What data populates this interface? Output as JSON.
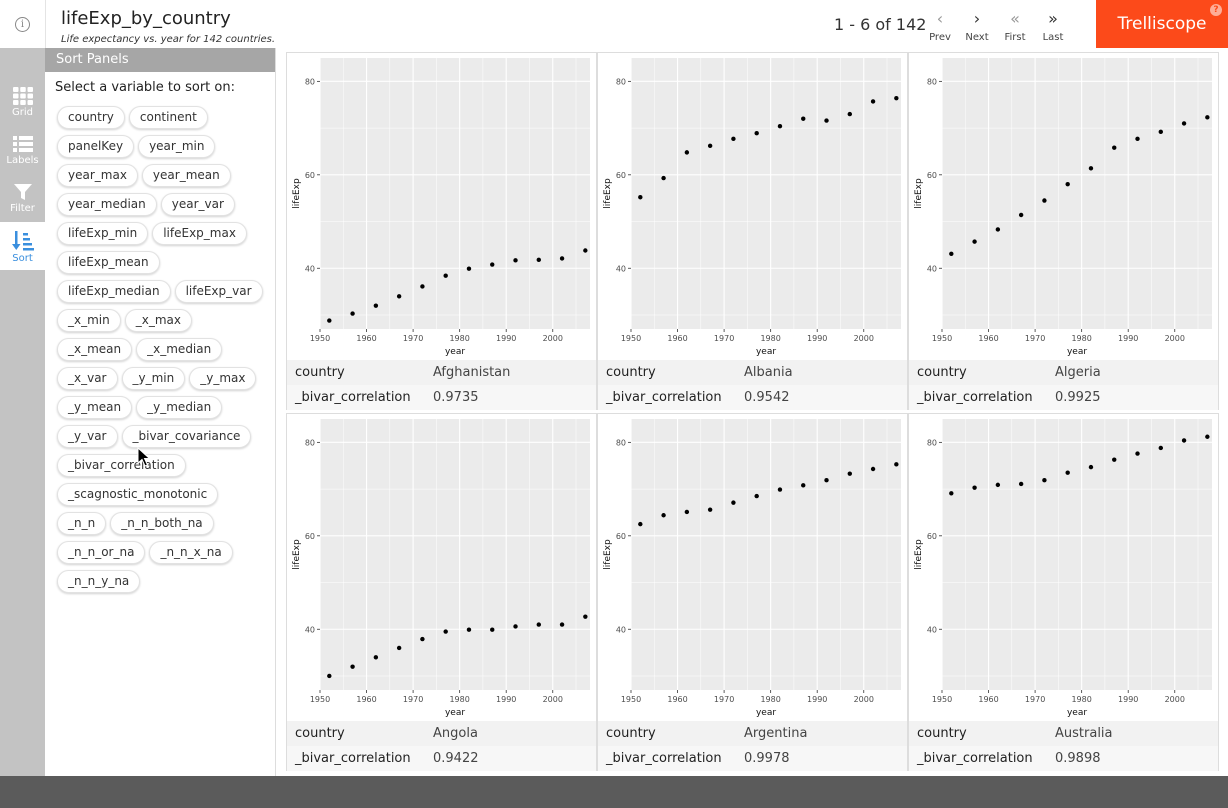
{
  "header": {
    "title": "lifeExp_by_country",
    "subtitle": "Life expectancy vs. year for 142 countries.",
    "page_info": "1 - 6 of 142",
    "nav": {
      "prev": "Prev",
      "next": "Next",
      "first": "First",
      "last": "Last"
    },
    "brand": "Trelliscope",
    "help": "?",
    "info": "i"
  },
  "toolbar": {
    "grid": "Grid",
    "labels": "Labels",
    "filter": "Filter",
    "sort": "Sort"
  },
  "sort_panel": {
    "title": "Sort Panels",
    "instruction": "Select a variable to sort on:",
    "variables": [
      "country",
      "continent",
      "panelKey",
      "year_min",
      "year_max",
      "year_mean",
      "year_median",
      "year_var",
      "lifeExp_min",
      "lifeExp_max",
      "lifeExp_mean",
      "lifeExp_median",
      "lifeExp_var",
      "_x_min",
      "_x_max",
      "_x_mean",
      "_x_median",
      "_x_var",
      "_y_min",
      "_y_max",
      "_y_mean",
      "_y_median",
      "_y_var",
      "_bivar_covariance",
      "_bivar_correlation",
      "_scagnostic_monotonic",
      "_n_n",
      "_n_n_both_na",
      "_n_n_or_na",
      "_n_n_x_na",
      "_n_n_y_na"
    ]
  },
  "colors": {
    "brand": "#fc4a1a",
    "active_tool": "#3a8fde",
    "plot_bg": "#ebebeb"
  },
  "chart_data": [
    {
      "type": "scatter",
      "xlabel": "year",
      "ylabel": "lifeExp",
      "xticks": [
        1950,
        1960,
        1970,
        1980,
        1990,
        2000
      ],
      "yticks": [
        40,
        60,
        80
      ],
      "xlim": [
        1950,
        2008
      ],
      "ylim": [
        27,
        85
      ],
      "x": [
        1952,
        1957,
        1962,
        1967,
        1972,
        1977,
        1982,
        1987,
        1992,
        1997,
        2002,
        2007
      ],
      "y": [
        28.8,
        30.3,
        32.0,
        34.0,
        36.1,
        38.4,
        39.9,
        40.8,
        41.7,
        41.8,
        42.1,
        43.8
      ],
      "labels": {
        "country": "Afghanistan",
        "_bivar_correlation": "0.9735"
      }
    },
    {
      "type": "scatter",
      "xlabel": "year",
      "ylabel": "lifeExp",
      "xticks": [
        1950,
        1960,
        1970,
        1980,
        1990,
        2000
      ],
      "yticks": [
        40,
        60,
        80
      ],
      "xlim": [
        1950,
        2008
      ],
      "ylim": [
        27,
        85
      ],
      "x": [
        1952,
        1957,
        1962,
        1967,
        1972,
        1977,
        1982,
        1987,
        1992,
        1997,
        2002,
        2007
      ],
      "y": [
        55.2,
        59.3,
        64.8,
        66.2,
        67.7,
        68.9,
        70.4,
        72.0,
        71.6,
        73.0,
        75.7,
        76.4
      ],
      "labels": {
        "country": "Albania",
        "_bivar_correlation": "0.9542"
      }
    },
    {
      "type": "scatter",
      "xlabel": "year",
      "ylabel": "lifeExp",
      "xticks": [
        1950,
        1960,
        1970,
        1980,
        1990,
        2000
      ],
      "yticks": [
        40,
        60,
        80
      ],
      "xlim": [
        1950,
        2008
      ],
      "ylim": [
        27,
        85
      ],
      "x": [
        1952,
        1957,
        1962,
        1967,
        1972,
        1977,
        1982,
        1987,
        1992,
        1997,
        2002,
        2007
      ],
      "y": [
        43.1,
        45.7,
        48.3,
        51.4,
        54.5,
        58.0,
        61.4,
        65.8,
        67.7,
        69.2,
        71.0,
        72.3
      ],
      "labels": {
        "country": "Algeria",
        "_bivar_correlation": "0.9925"
      }
    },
    {
      "type": "scatter",
      "xlabel": "year",
      "ylabel": "lifeExp",
      "xticks": [
        1950,
        1960,
        1970,
        1980,
        1990,
        2000
      ],
      "yticks": [
        40,
        60,
        80
      ],
      "xlim": [
        1950,
        2008
      ],
      "ylim": [
        27,
        85
      ],
      "x": [
        1952,
        1957,
        1962,
        1967,
        1972,
        1977,
        1982,
        1987,
        1992,
        1997,
        2002,
        2007
      ],
      "y": [
        30.0,
        32.0,
        34.0,
        36.0,
        37.9,
        39.5,
        39.9,
        39.9,
        40.6,
        41.0,
        41.0,
        42.7
      ],
      "labels": {
        "country": "Angola",
        "_bivar_correlation": "0.9422"
      }
    },
    {
      "type": "scatter",
      "xlabel": "year",
      "ylabel": "lifeExp",
      "xticks": [
        1950,
        1960,
        1970,
        1980,
        1990,
        2000
      ],
      "yticks": [
        40,
        60,
        80
      ],
      "xlim": [
        1950,
        2008
      ],
      "ylim": [
        27,
        85
      ],
      "x": [
        1952,
        1957,
        1962,
        1967,
        1972,
        1977,
        1982,
        1987,
        1992,
        1997,
        2002,
        2007
      ],
      "y": [
        62.5,
        64.4,
        65.1,
        65.6,
        67.1,
        68.5,
        69.9,
        70.8,
        71.9,
        73.3,
        74.3,
        75.3
      ],
      "labels": {
        "country": "Argentina",
        "_bivar_correlation": "0.9978"
      }
    },
    {
      "type": "scatter",
      "xlabel": "year",
      "ylabel": "lifeExp",
      "xticks": [
        1950,
        1960,
        1970,
        1980,
        1990,
        2000
      ],
      "yticks": [
        40,
        60,
        80
      ],
      "xlim": [
        1950,
        2008
      ],
      "ylim": [
        27,
        85
      ],
      "x": [
        1952,
        1957,
        1962,
        1967,
        1972,
        1977,
        1982,
        1987,
        1992,
        1997,
        2002,
        2007
      ],
      "y": [
        69.1,
        70.3,
        70.9,
        71.1,
        71.9,
        73.5,
        74.7,
        76.3,
        77.6,
        78.8,
        80.4,
        81.2
      ],
      "labels": {
        "country": "Australia",
        "_bivar_correlation": "0.9898"
      }
    }
  ]
}
